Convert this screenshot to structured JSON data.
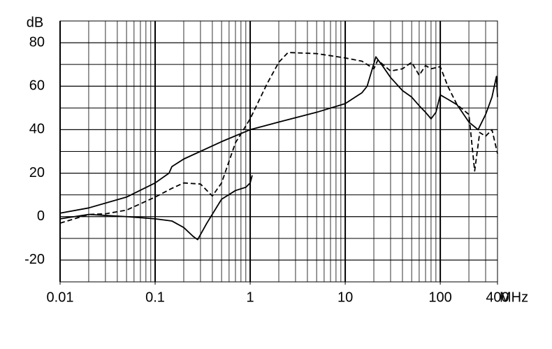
{
  "chart_data": {
    "type": "line",
    "xscale": "log",
    "grid": true,
    "y_label": "dB",
    "x_label": "MHz",
    "xlim": [
      0.01,
      400
    ],
    "ylim": [
      -30,
      90
    ],
    "xticks": [
      0.01,
      0.1,
      1,
      10,
      100,
      400
    ],
    "yticks": [
      -20,
      0,
      20,
      40,
      60,
      80
    ],
    "series": [
      {
        "color": "#000000",
        "dash": false,
        "x": [
          0.01,
          0.02,
          0.05,
          0.1,
          0.14,
          0.15,
          0.2,
          0.5,
          1,
          2,
          5,
          10,
          15,
          17,
          21,
          25,
          30,
          40,
          50,
          60,
          70,
          80,
          90,
          100,
          120,
          150,
          200,
          250,
          300,
          350,
          390,
          400
        ],
        "values": [
          1.6,
          4,
          9,
          15.5,
          20,
          23,
          26.5,
          34.5,
          40,
          43.5,
          48,
          52,
          57,
          60,
          73.5,
          69,
          64,
          58,
          55,
          51,
          48,
          45,
          48,
          56,
          54,
          51.5,
          43.5,
          40,
          47,
          55,
          64.5,
          55
        ]
      },
      {
        "color": "#000000",
        "dash": false,
        "x": [
          0.01,
          0.02,
          0.05,
          0.1,
          0.15,
          0.2,
          0.25,
          0.28,
          0.35,
          0.5,
          0.7,
          0.9,
          1,
          1.05
        ],
        "values": [
          -1,
          1,
          0,
          -1,
          -2,
          -5,
          -9,
          -10.6,
          -3,
          8,
          12,
          13.5,
          15.5,
          19
        ]
      },
      {
        "color": "#000000",
        "dash": true,
        "x": [
          0.01,
          0.02,
          0.03,
          0.05,
          0.1,
          0.15,
          0.2,
          0.3,
          0.4,
          0.5,
          0.7,
          1,
          1.5,
          2,
          2.5,
          5,
          10,
          15,
          20,
          22,
          30,
          40,
          50,
          60,
          70,
          80,
          100,
          120,
          150,
          200,
          230,
          260,
          300,
          350,
          400
        ],
        "values": [
          -3,
          1,
          1.3,
          3,
          9,
          13,
          15.5,
          15,
          9.5,
          15.5,
          34,
          45,
          61,
          71,
          75.5,
          75,
          73,
          71.5,
          68,
          72,
          67,
          68,
          71,
          65,
          69.5,
          68,
          69,
          60,
          51.5,
          47,
          21,
          38.7,
          37,
          40,
          29
        ]
      }
    ]
  }
}
